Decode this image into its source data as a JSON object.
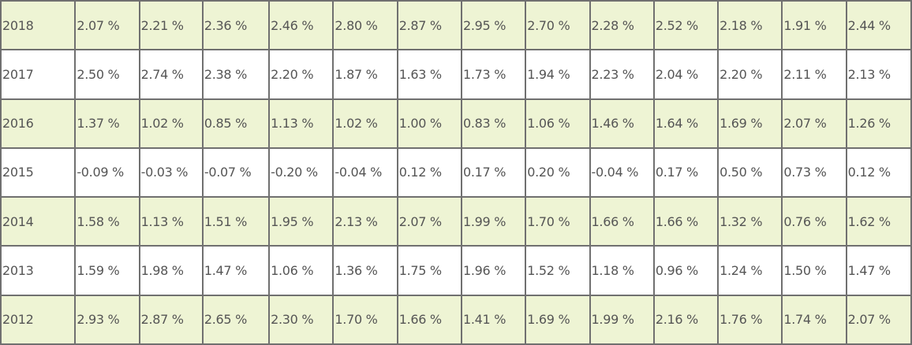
{
  "table": {
    "rows": [
      {
        "year": "2018",
        "values": [
          "2.07 %",
          "2.21 %",
          "2.36 %",
          "2.46 %",
          "2.80 %",
          "2.87 %",
          "2.95 %",
          "2.70 %",
          "2.28 %",
          "2.52 %",
          "2.18 %",
          "1.91 %",
          "2.44 %"
        ]
      },
      {
        "year": "2017",
        "values": [
          "2.50 %",
          "2.74 %",
          "2.38 %",
          "2.20 %",
          "1.87 %",
          "1.63 %",
          "1.73 %",
          "1.94 %",
          "2.23 %",
          "2.04 %",
          "2.20 %",
          "2.11 %",
          "2.13 %"
        ]
      },
      {
        "year": "2016",
        "values": [
          "1.37 %",
          "1.02 %",
          "0.85 %",
          "1.13 %",
          "1.02 %",
          "1.00 %",
          "0.83 %",
          "1.06 %",
          "1.46 %",
          "1.64 %",
          "1.69 %",
          "2.07 %",
          "1.26 %"
        ]
      },
      {
        "year": "2015",
        "values": [
          "-0.09 %",
          "-0.03 %",
          "-0.07 %",
          "-0.20 %",
          "-0.04 %",
          "0.12 %",
          "0.17 %",
          "0.20 %",
          "-0.04 %",
          "0.17 %",
          "0.50 %",
          "0.73 %",
          "0.12 %"
        ]
      },
      {
        "year": "2014",
        "values": [
          "1.58 %",
          "1.13 %",
          "1.51 %",
          "1.95 %",
          "2.13 %",
          "2.07 %",
          "1.99 %",
          "1.70 %",
          "1.66 %",
          "1.66 %",
          "1.32 %",
          "0.76 %",
          "1.62 %"
        ]
      },
      {
        "year": "2013",
        "values": [
          "1.59 %",
          "1.98 %",
          "1.47 %",
          "1.06 %",
          "1.36 %",
          "1.75 %",
          "1.96 %",
          "1.52 %",
          "1.18 %",
          "0.96 %",
          "1.24 %",
          "1.50 %",
          "1.47 %"
        ]
      },
      {
        "year": "2012",
        "values": [
          "2.93 %",
          "2.87 %",
          "2.65 %",
          "2.30 %",
          "1.70 %",
          "1.66 %",
          "1.41 %",
          "1.69 %",
          "1.99 %",
          "2.16 %",
          "1.76 %",
          "1.74 %",
          "2.07 %"
        ]
      }
    ]
  },
  "colors": {
    "shaded_row": "#eef4d4",
    "plain_row": "#ffffff",
    "grid": "#707070",
    "text": "#555555"
  }
}
